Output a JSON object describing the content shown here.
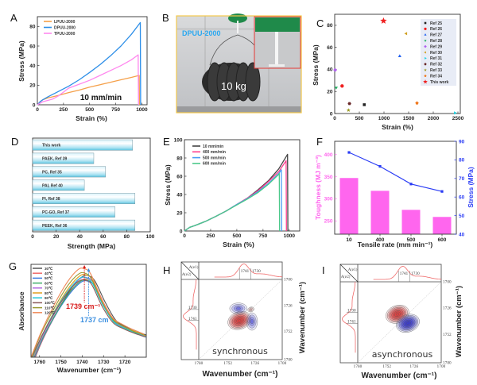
{
  "figure": {
    "panel_labels": [
      "A",
      "B",
      "C",
      "D",
      "E",
      "F",
      "G",
      "H",
      "I"
    ]
  },
  "photo_b": {
    "sample_label": "DPUU-2000",
    "weight_label": "10 kg",
    "border_color": "#f2c94c",
    "inset_border_color": "#e53935"
  },
  "chart_data": [
    {
      "panel": "A",
      "type": "line",
      "title": "",
      "xlabel": "Strain (%)",
      "ylabel": "Stress (MPa)",
      "xlim": [
        0,
        1050
      ],
      "ylim": [
        0,
        90
      ],
      "xticks": [
        0,
        250,
        500,
        750,
        1000
      ],
      "yticks": [
        0,
        20,
        40,
        60,
        80
      ],
      "grid": false,
      "legend_position": "top-left",
      "annotation": "10 mm/min",
      "series": [
        {
          "name": "LPUU-2000",
          "color": "#f5a04a",
          "x": [
            0,
            25,
            50,
            100,
            200,
            300,
            400,
            500,
            600,
            700,
            800,
            900,
            975,
            978
          ],
          "y": [
            0,
            3,
            5,
            7,
            9.5,
            12.5,
            15,
            18,
            20.5,
            23,
            25.5,
            28,
            30,
            0
          ]
        },
        {
          "name": "DPUU-2000",
          "color": "#2e8fe8",
          "x": [
            0,
            25,
            50,
            100,
            200,
            300,
            400,
            500,
            600,
            700,
            800,
            900,
            985,
            988
          ],
          "y": [
            0,
            3,
            5,
            8,
            13.5,
            19,
            25.5,
            33,
            41,
            50,
            60,
            72,
            84,
            0
          ]
        },
        {
          "name": "TPUU-2000",
          "color": "#ff88ee",
          "x": [
            0,
            50,
            100,
            150,
            200,
            250,
            300,
            400,
            500,
            600,
            700,
            800,
            900,
            965,
            968
          ],
          "y": [
            0,
            3,
            4.5,
            6,
            9,
            13,
            17,
            21,
            25,
            30,
            35,
            40,
            46,
            51,
            0
          ]
        }
      ]
    },
    {
      "panel": "C",
      "type": "scatter",
      "title": "",
      "xlabel": "Strain (%)",
      "ylabel": "Stress (MPa)",
      "xlim": [
        0,
        2500
      ],
      "ylim": [
        0,
        90
      ],
      "xticks": [
        0,
        500,
        1000,
        1500,
        2000,
        2500
      ],
      "yticks": [
        0,
        20,
        40,
        60,
        80
      ],
      "grid": false,
      "legend_position": "top-right",
      "series": [
        {
          "name": "Ref 25",
          "color": "#222222",
          "marker": "square",
          "x": [
            600
          ],
          "y": [
            8
          ]
        },
        {
          "name": "Ref 26",
          "color": "#f02020",
          "marker": "circle",
          "x": [
            150
          ],
          "y": [
            25
          ]
        },
        {
          "name": "Ref 27",
          "color": "#2060f0",
          "marker": "triangle-up",
          "x": [
            1320
          ],
          "y": [
            52
          ]
        },
        {
          "name": "Ref 28",
          "color": "#20b060",
          "marker": "triangle-down",
          "x": [
            30
          ],
          "y": [
            23.5
          ]
        },
        {
          "name": "Ref 29",
          "color": "#b060f0",
          "marker": "diamond",
          "x": [
            10
          ],
          "y": [
            39.5
          ]
        },
        {
          "name": "Ref 30",
          "color": "#d0a020",
          "marker": "triangle-left",
          "x": [
            1450
          ],
          "y": [
            72.5
          ]
        },
        {
          "name": "Ref 31",
          "color": "#20d0e0",
          "marker": "triangle-right",
          "x": [
            2440
          ],
          "y": [
            0.5
          ]
        },
        {
          "name": "Ref 32",
          "color": "#6a2a2a",
          "marker": "hexagon",
          "x": [
            300
          ],
          "y": [
            9
          ]
        },
        {
          "name": "Ref 33",
          "color": "#9a9a20",
          "marker": "star",
          "x": [
            280
          ],
          "y": [
            3
          ]
        },
        {
          "name": "Ref 34",
          "color": "#f07a20",
          "marker": "pentagon",
          "x": [
            1670
          ],
          "y": [
            9.5
          ]
        },
        {
          "name": "This work",
          "color": "#f02020",
          "marker": "big-star",
          "x": [
            990
          ],
          "y": [
            84
          ]
        }
      ]
    },
    {
      "panel": "D",
      "type": "bar",
      "orientation": "horizontal",
      "title": "",
      "xlabel": "Strength (MPa)",
      "ylabel": "",
      "xlim": [
        0,
        100
      ],
      "xticks": [
        0,
        20,
        40,
        60,
        80,
        100
      ],
      "categories": [
        "This work",
        "PAEK, Ref 39",
        "PC, Ref 35",
        "PAI, Ref 40",
        "PI, Ref 38",
        "PC-GO, Ref 37",
        "PEEK, Ref 36"
      ],
      "values": [
        85,
        52,
        62,
        44,
        87,
        70,
        87
      ],
      "color": "#5bc4e0"
    },
    {
      "panel": "E",
      "type": "line",
      "title": "",
      "xlabel": "Strain (%)",
      "ylabel": "Stress (MPa)",
      "xlim": [
        0,
        1100
      ],
      "ylim": [
        0,
        100
      ],
      "xticks": [
        0,
        250,
        500,
        750,
        1000
      ],
      "yticks": [
        0,
        20,
        40,
        60,
        80,
        100
      ],
      "grid": false,
      "legend_position": "top-left",
      "series": [
        {
          "name": "10 mm/min",
          "color": "#444444",
          "x": [
            0,
            50,
            100,
            200,
            300,
            400,
            500,
            600,
            700,
            800,
            900,
            984,
            987
          ],
          "y": [
            0,
            4,
            6,
            10.5,
            16,
            22,
            29,
            36,
            45,
            55,
            68,
            84,
            0
          ]
        },
        {
          "name": "400 mm/min",
          "color": "#ff3c8c",
          "x": [
            0,
            50,
            100,
            200,
            300,
            400,
            500,
            600,
            700,
            800,
            900,
            970,
            973
          ],
          "y": [
            0,
            4,
            6,
            10.5,
            16,
            22,
            29,
            36,
            44,
            54,
            65,
            77,
            0
          ]
        },
        {
          "name": "500 mm/min",
          "color": "#4a9cf5",
          "x": [
            0,
            50,
            100,
            200,
            300,
            400,
            500,
            600,
            700,
            800,
            900,
            925,
            928
          ],
          "y": [
            0,
            4,
            6,
            10.5,
            16,
            22,
            29,
            35.5,
            43,
            52,
            63,
            67,
            0
          ]
        },
        {
          "name": "600 mm/min",
          "color": "#4cc98a",
          "x": [
            0,
            50,
            100,
            200,
            300,
            400,
            500,
            600,
            700,
            800,
            900,
            905,
            908
          ],
          "y": [
            0,
            4,
            6,
            10.5,
            16,
            22,
            28.5,
            35,
            42,
            51,
            62,
            63,
            0
          ]
        }
      ]
    },
    {
      "panel": "F",
      "type": "bar",
      "title": "",
      "xlabel": "Tensile rate (mm min⁻¹)",
      "ylabel": "Toughness (MJ m⁻³)",
      "ylabel_right": "Stress (MPa)",
      "categories": [
        "10",
        "400",
        "500",
        "600"
      ],
      "ylim": [
        220,
        430
      ],
      "yticks": [
        250,
        300,
        350,
        400
      ],
      "ylim_right": [
        40,
        90
      ],
      "yticks_right": [
        40,
        50,
        60,
        70,
        80,
        90
      ],
      "series": [
        {
          "name": "Toughness",
          "type": "bar",
          "axis": "left",
          "color": "#ff66ee",
          "values": [
            347,
            318,
            275,
            259
          ]
        },
        {
          "name": "Stress",
          "type": "line",
          "axis": "right",
          "color": "#2a3cf5",
          "values": [
            84,
            76.5,
            67,
            63
          ]
        }
      ]
    },
    {
      "panel": "G",
      "type": "line",
      "title": "",
      "xlabel": "Wavenumber (cm⁻¹)",
      "ylabel": "Absorbance",
      "xlim": [
        1764,
        1710
      ],
      "ylim": [
        0,
        1.05
      ],
      "x_reversed": true,
      "xticks": [
        1760,
        1750,
        1740,
        1730,
        1720
      ],
      "yticks": [],
      "legend_position": "top-left",
      "annotations": [
        {
          "text": "1739 cm⁻¹",
          "x": 1739,
          "color": "#d81b1b"
        },
        {
          "text": "1737 cm",
          "x": 1737,
          "color": "#3b8fe0"
        }
      ],
      "x": [
        1763,
        1758,
        1752,
        1746,
        1741,
        1738,
        1735,
        1730,
        1725,
        1720,
        1715,
        1710
      ],
      "series": [
        {
          "name": "30℃",
          "color": "#555555",
          "y": [
            0,
            0.28,
            0.55,
            0.78,
            0.91,
            0.92,
            0.86,
            0.61,
            0.41,
            0.34,
            0.29,
            0.24
          ]
        },
        {
          "name": "40℃",
          "color": "#f06a6a",
          "y": [
            0,
            0.26,
            0.53,
            0.75,
            0.87,
            0.88,
            0.83,
            0.58,
            0.4,
            0.33,
            0.27,
            0.23
          ]
        },
        {
          "name": "50℃",
          "color": "#3a7ae0",
          "y": [
            0,
            0.26,
            0.52,
            0.73,
            0.85,
            0.86,
            0.81,
            0.57,
            0.39,
            0.32,
            0.27,
            0.22
          ]
        },
        {
          "name": "60℃",
          "color": "#3fae6a",
          "y": [
            0,
            0.26,
            0.52,
            0.74,
            0.86,
            0.87,
            0.82,
            0.57,
            0.39,
            0.32,
            0.27,
            0.23
          ]
        },
        {
          "name": "70℃",
          "color": "#b36ae0",
          "y": [
            0,
            0.27,
            0.54,
            0.77,
            0.89,
            0.9,
            0.85,
            0.59,
            0.41,
            0.33,
            0.28,
            0.23
          ]
        },
        {
          "name": "80℃",
          "color": "#e0a020",
          "y": [
            0,
            0.28,
            0.56,
            0.79,
            0.92,
            0.93,
            0.87,
            0.61,
            0.42,
            0.34,
            0.29,
            0.24
          ]
        },
        {
          "name": "90℃",
          "color": "#20c8d8",
          "y": [
            0,
            0.27,
            0.54,
            0.76,
            0.89,
            0.9,
            0.84,
            0.59,
            0.4,
            0.33,
            0.28,
            0.23
          ]
        },
        {
          "name": "100℃",
          "color": "#8a5a5a",
          "y": [
            0,
            0.26,
            0.52,
            0.74,
            0.86,
            0.87,
            0.82,
            0.57,
            0.39,
            0.32,
            0.27,
            0.23
          ]
        },
        {
          "name": "110℃",
          "color": "#9a9a30",
          "y": [
            0,
            0.29,
            0.57,
            0.81,
            0.94,
            0.95,
            0.89,
            0.63,
            0.43,
            0.35,
            0.29,
            0.25
          ]
        },
        {
          "name": "120℃",
          "color": "#f08a5a",
          "y": [
            0,
            0.3,
            0.6,
            0.85,
            0.99,
            1.0,
            0.94,
            0.66,
            0.45,
            0.37,
            0.31,
            0.26
          ]
        }
      ]
    },
    {
      "panel": "H",
      "type": "heatmap",
      "style": "2D correlation contour",
      "label": "synchronous",
      "xlabel": "Wavenumber (cm⁻¹)",
      "ylabel": "Wavenumber (cm⁻¹)",
      "xlim": [
        1780,
        1700
      ],
      "ylim": [
        1700,
        1780
      ],
      "xticks": [
        1780,
        1752,
        1726,
        1700
      ],
      "yticks": [
        1700,
        1726,
        1752,
        1780
      ],
      "corner_labels": [
        "A(ν1)",
        "A(ν2)"
      ],
      "spectrum_peak_labels": [
        "1741",
        "1730"
      ],
      "peaks": [
        {
          "x": 1741,
          "y": 1741,
          "sign": "positive",
          "color": "#e04040"
        },
        {
          "x": 1730,
          "y": 1730,
          "sign": "positive",
          "color": "#e08080"
        },
        {
          "x": 1742,
          "y": 1729,
          "sign": "negative",
          "color": "#3a3ad0"
        },
        {
          "x": 1729,
          "y": 1742,
          "sign": "negative",
          "color": "#3a3ad0"
        }
      ]
    },
    {
      "panel": "I",
      "type": "heatmap",
      "style": "2D correlation contour",
      "label": "asynchronous",
      "xlabel": "Wavenumber (cm⁻¹)",
      "ylabel": "Wavenumber (cm⁻¹)",
      "xlim": [
        1780,
        1700
      ],
      "ylim": [
        1700,
        1780
      ],
      "xticks": [
        1780,
        1752,
        1726,
        1700
      ],
      "yticks": [
        1700,
        1726,
        1752,
        1780
      ],
      "corner_labels": [
        "A(ν1)",
        "A(ν2)"
      ],
      "spectrum_peak_labels": [
        "1741",
        "1730"
      ],
      "peaks": [
        {
          "x": 1742,
          "y": 1732,
          "sign": "positive",
          "color": "#e04040"
        },
        {
          "x": 1732,
          "y": 1741,
          "sign": "negative",
          "color": "#3a3ad0"
        }
      ]
    }
  ]
}
